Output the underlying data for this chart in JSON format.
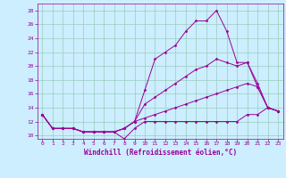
{
  "xlabel": "Windchill (Refroidissement éolien,°C)",
  "background_color": "#cceeff",
  "grid_color": "#99ccbb",
  "line_color": "#990099",
  "xlim": [
    -0.5,
    23.5
  ],
  "ylim": [
    9.5,
    29
  ],
  "yticks": [
    10,
    12,
    14,
    16,
    18,
    20,
    22,
    24,
    26,
    28
  ],
  "xticks": [
    0,
    1,
    2,
    3,
    4,
    5,
    6,
    7,
    8,
    9,
    10,
    11,
    12,
    13,
    14,
    15,
    16,
    17,
    18,
    19,
    20,
    21,
    22,
    23
  ],
  "line1_x": [
    0,
    1,
    2,
    3,
    4,
    5,
    6,
    7,
    8,
    9,
    10,
    11,
    12,
    13,
    14,
    15,
    16,
    17,
    18,
    19,
    20,
    21,
    22,
    23
  ],
  "line1_y": [
    13,
    11,
    11,
    11,
    10.5,
    10.5,
    10.5,
    10.5,
    9.5,
    11,
    12,
    12,
    12,
    12,
    12,
    12,
    12,
    12,
    12,
    12,
    13,
    13,
    14,
    13.5
  ],
  "line2_x": [
    0,
    1,
    2,
    3,
    4,
    5,
    6,
    7,
    8,
    9,
    10,
    11,
    12,
    13,
    14,
    15,
    16,
    17,
    18,
    19,
    20,
    21,
    22,
    23
  ],
  "line2_y": [
    13,
    11,
    11,
    11,
    10.5,
    10.5,
    10.5,
    10.5,
    11,
    12,
    16.5,
    21,
    22,
    23,
    25,
    26.5,
    26.5,
    28,
    25,
    20.5,
    20.5,
    17.5,
    14,
    13.5
  ],
  "line3_x": [
    0,
    1,
    2,
    3,
    4,
    5,
    6,
    7,
    8,
    9,
    10,
    11,
    12,
    13,
    14,
    15,
    16,
    17,
    18,
    19,
    20,
    21,
    22,
    23
  ],
  "line3_y": [
    13,
    11,
    11,
    11,
    10.5,
    10.5,
    10.5,
    10.5,
    11,
    12,
    14.5,
    15.5,
    16.5,
    17.5,
    18.5,
    19.5,
    20,
    21,
    20.5,
    20,
    20.5,
    17,
    14,
    13.5
  ],
  "line4_x": [
    0,
    1,
    2,
    3,
    4,
    5,
    6,
    7,
    8,
    9,
    10,
    11,
    12,
    13,
    14,
    15,
    16,
    17,
    18,
    19,
    20,
    21,
    22,
    23
  ],
  "line4_y": [
    13,
    11,
    11,
    11,
    10.5,
    10.5,
    10.5,
    10.5,
    11,
    12,
    12.5,
    13,
    13.5,
    14,
    14.5,
    15,
    15.5,
    16,
    16.5,
    17,
    17.5,
    17,
    14,
    13.5
  ]
}
